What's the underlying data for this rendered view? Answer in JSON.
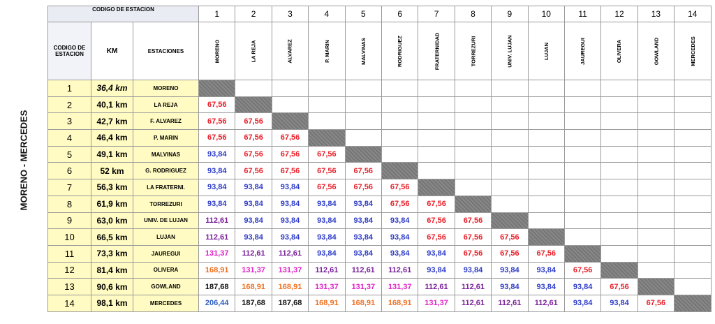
{
  "side_label": "MORENO - MERCEDES",
  "header": {
    "group_label": "CODIGO DE ESTACION",
    "code_label": "CODIGO DE ESTACION",
    "km_label": "KM",
    "stations_label": "ESTACIONES"
  },
  "columns": [
    {
      "code": "1",
      "name": "MORENO"
    },
    {
      "code": "2",
      "name": "LA REJA"
    },
    {
      "code": "3",
      "name": "ALVAREZ"
    },
    {
      "code": "4",
      "name": "P. MARIN"
    },
    {
      "code": "5",
      "name": "MALVINAS"
    },
    {
      "code": "6",
      "name": "RODRIGUEZ"
    },
    {
      "code": "7",
      "name": "FRATERNIDAD"
    },
    {
      "code": "8",
      "name": "TORREZURI"
    },
    {
      "code": "9",
      "name": "UNIV. LUJAN"
    },
    {
      "code": "10",
      "name": "LUJAN"
    },
    {
      "code": "11",
      "name": "JAUREGUI"
    },
    {
      "code": "12",
      "name": "OLIVERA"
    },
    {
      "code": "13",
      "name": "GOWLAND"
    },
    {
      "code": "14",
      "name": "MERCEDES"
    }
  ],
  "fare_colors": {
    "67,56": "#e8202a",
    "93,84": "#2e3cc8",
    "112,61": "#7a1f9a",
    "131,37": "#e020c8",
    "168,91": "#f07020",
    "187,68": "#111111",
    "206,44": "#3060c0"
  },
  "rows": [
    {
      "code": "1",
      "km": "36,4 km",
      "station": "MORENO",
      "fares": []
    },
    {
      "code": "2",
      "km": "40,1 km",
      "station": "LA REJA",
      "fares": [
        "67,56"
      ]
    },
    {
      "code": "3",
      "km": "42,7 km",
      "station": "F.  ALVAREZ",
      "fares": [
        "67,56",
        "67,56"
      ]
    },
    {
      "code": "4",
      "km": "46,4 km",
      "station": "P. MARIN",
      "fares": [
        "67,56",
        "67,56",
        "67,56"
      ]
    },
    {
      "code": "5",
      "km": "49,1 km",
      "station": "MALVINAS",
      "fares": [
        "93,84",
        "67,56",
        "67,56",
        "67,56"
      ]
    },
    {
      "code": "6",
      "km": "52 km",
      "station": "G. RODRIGUEZ",
      "fares": [
        "93,84",
        "67,56",
        "67,56",
        "67,56",
        "67,56"
      ]
    },
    {
      "code": "7",
      "km": "56,3 km",
      "station": "LA FRATERNI.",
      "fares": [
        "93,84",
        "93,84",
        "93,84",
        "67,56",
        "67,56",
        "67,56"
      ]
    },
    {
      "code": "8",
      "km": "61,9 km",
      "station": "TORREZURI",
      "fares": [
        "93,84",
        "93,84",
        "93,84",
        "93,84",
        "93,84",
        "67,56",
        "67,56"
      ]
    },
    {
      "code": "9",
      "km": "63,0 km",
      "station": "UNIV. DE LUJAN",
      "fares": [
        "112,61",
        "93,84",
        "93,84",
        "93,84",
        "93,84",
        "93,84",
        "67,56",
        "67,56"
      ]
    },
    {
      "code": "10",
      "km": "66,5 km",
      "station": "LUJAN",
      "fares": [
        "112,61",
        "93,84",
        "93,84",
        "93,84",
        "93,84",
        "93,84",
        "67,56",
        "67,56",
        "67,56"
      ]
    },
    {
      "code": "11",
      "km": "73,3 km",
      "station": "JAUREGUI",
      "fares": [
        "131,37",
        "112,61",
        "112,61",
        "93,84",
        "93,84",
        "93,84",
        "93,84",
        "67,56",
        "67,56",
        "67,56"
      ]
    },
    {
      "code": "12",
      "km": "81,4 km",
      "station": "OLIVERA",
      "fares": [
        "168,91",
        "131,37",
        "131,37",
        "112,61",
        "112,61",
        "112,61",
        "93,84",
        "93,84",
        "93,84",
        "93,84",
        "67,56"
      ]
    },
    {
      "code": "13",
      "km": "90,6 km",
      "station": "GOWLAND",
      "fares": [
        "187,68",
        "168,91",
        "168,91",
        "131,37",
        "131,37",
        "131,37",
        "112,61",
        "112,61",
        "93,84",
        "93,84",
        "93,84",
        "67,56"
      ]
    },
    {
      "code": "14",
      "km": "98,1 km",
      "station": "MERCEDES",
      "fares": [
        "206,44",
        "187,68",
        "187,68",
        "168,91",
        "168,91",
        "168,91",
        "131,37",
        "112,61",
        "112,61",
        "112,61",
        "93,84",
        "93,84",
        "67,56"
      ]
    }
  ]
}
